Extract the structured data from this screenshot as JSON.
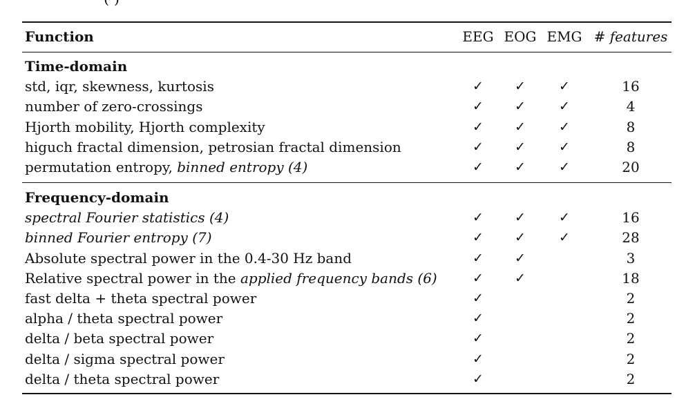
{
  "clipped_caption": "(        )",
  "header": {
    "function": "Function",
    "eeg": "EEG",
    "eog": "EOG",
    "emg": "EMG",
    "features_hash": "#",
    "features_word": "features"
  },
  "check_glyph": "✓",
  "sections": [
    {
      "title": "Time-domain",
      "rows": [
        {
          "parts": [
            {
              "text": "std, iqr, skewness, kurtosis",
              "italic": false
            }
          ],
          "eeg": true,
          "eog": true,
          "emg": true,
          "features": "16"
        },
        {
          "parts": [
            {
              "text": "number of zero-crossings",
              "italic": false
            }
          ],
          "eeg": true,
          "eog": true,
          "emg": true,
          "features": "4"
        },
        {
          "parts": [
            {
              "text": "Hjorth mobility, Hjorth complexity",
              "italic": false
            }
          ],
          "eeg": true,
          "eog": true,
          "emg": true,
          "features": "8"
        },
        {
          "parts": [
            {
              "text": "higuch fractal dimension, petrosian fractal dimension",
              "italic": false
            }
          ],
          "eeg": true,
          "eog": true,
          "emg": true,
          "features": "8"
        },
        {
          "parts": [
            {
              "text": "permutation entropy, ",
              "italic": false
            },
            {
              "text": "binned entropy (4)",
              "italic": true
            }
          ],
          "eeg": true,
          "eog": true,
          "emg": true,
          "features": "20"
        }
      ]
    },
    {
      "title": "Frequency-domain",
      "rows": [
        {
          "parts": [
            {
              "text": "spectral Fourier statistics (4)",
              "italic": true
            }
          ],
          "eeg": true,
          "eog": true,
          "emg": true,
          "features": "16"
        },
        {
          "parts": [
            {
              "text": "binned Fourier entropy (7)",
              "italic": true
            }
          ],
          "eeg": true,
          "eog": true,
          "emg": true,
          "features": "28"
        },
        {
          "parts": [
            {
              "text": "Absolute spectral power in the 0.4-30 Hz band",
              "italic": false
            }
          ],
          "eeg": true,
          "eog": true,
          "emg": false,
          "features": "3"
        },
        {
          "parts": [
            {
              "text": "Relative spectral power in the ",
              "italic": false
            },
            {
              "text": "applied frequency bands (6)",
              "italic": true
            }
          ],
          "eeg": true,
          "eog": true,
          "emg": false,
          "features": "18"
        },
        {
          "parts": [
            {
              "text": "fast delta + theta spectral power",
              "italic": false
            }
          ],
          "eeg": true,
          "eog": false,
          "emg": false,
          "features": "2"
        },
        {
          "parts": [
            {
              "text": "alpha / theta spectral power",
              "italic": false
            }
          ],
          "eeg": true,
          "eog": false,
          "emg": false,
          "features": "2"
        },
        {
          "parts": [
            {
              "text": "delta / beta spectral power",
              "italic": false
            }
          ],
          "eeg": true,
          "eog": false,
          "emg": false,
          "features": "2"
        },
        {
          "parts": [
            {
              "text": "delta / sigma spectral power",
              "italic": false
            }
          ],
          "eeg": true,
          "eog": false,
          "emg": false,
          "features": "2"
        },
        {
          "parts": [
            {
              "text": "delta / theta spectral power",
              "italic": false
            }
          ],
          "eeg": true,
          "eog": false,
          "emg": false,
          "features": "2"
        }
      ]
    }
  ]
}
